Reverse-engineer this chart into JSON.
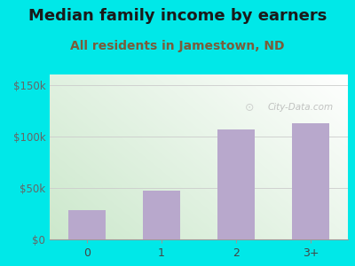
{
  "title": "Median family income by earners",
  "subtitle": "All residents in Jamestown, ND",
  "categories": [
    "0",
    "1",
    "2",
    "3+"
  ],
  "values": [
    28000,
    47000,
    107000,
    113000
  ],
  "bar_color": "#b8a8cc",
  "title_color": "#1a1a1a",
  "subtitle_color": "#7a5c3a",
  "yticks": [
    0,
    50000,
    100000,
    150000
  ],
  "ytick_labels": [
    "$0",
    "$50k",
    "$100k",
    "$150k"
  ],
  "ylim": [
    0,
    160000
  ],
  "fig_bg_color": "#00e8e8",
  "watermark": "City-Data.com",
  "title_fontsize": 13,
  "subtitle_fontsize": 10,
  "gradient_topleft": "#cce8cc",
  "gradient_bottomright": "#ffffff"
}
